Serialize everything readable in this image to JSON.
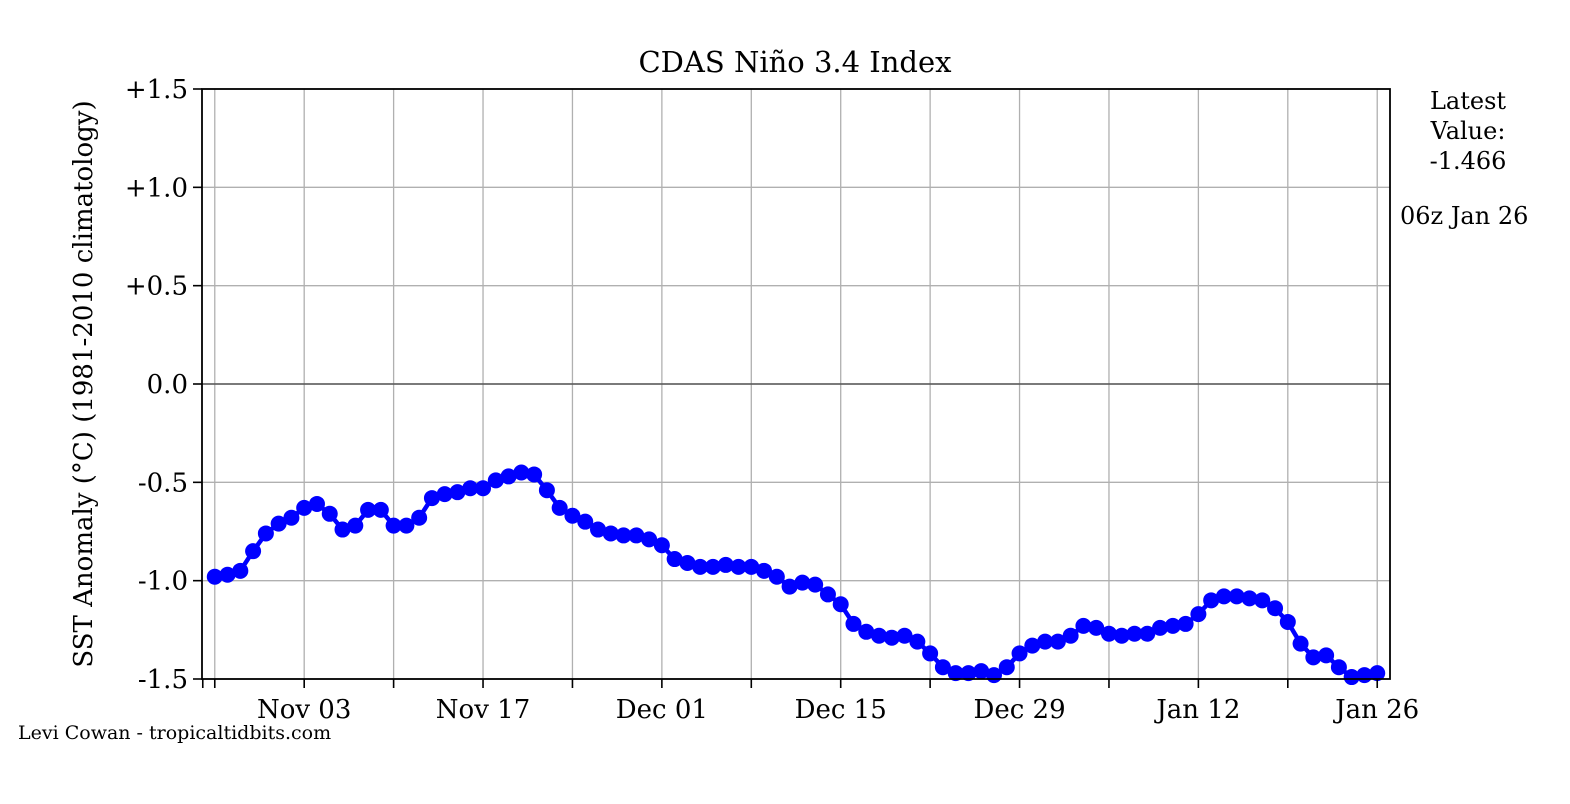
{
  "chart_data": {
    "type": "line",
    "title": "CDAS Niño 3.4 Index",
    "ylabel": "SST Anomaly (°C) (1981-2010 climatology)",
    "xlabel": "",
    "ylim": [
      -1.5,
      1.5
    ],
    "yticks": [
      1.5,
      1.0,
      0.5,
      0.0,
      -0.5,
      -1.0,
      -1.5
    ],
    "ytick_labels": [
      "+1.5",
      "+1.0",
      "+0.5",
      "0.0",
      "-0.5",
      "-1.0",
      "-1.5"
    ],
    "xlim": [
      "2017-10-26",
      "2018-01-27"
    ],
    "xticks": [
      "2017-11-03",
      "2017-11-17",
      "2017-12-01",
      "2017-12-15",
      "2017-12-29",
      "2018-01-12",
      "2018-01-26"
    ],
    "xtick_labels": [
      "Nov 03",
      "Nov 17",
      "Dec 01",
      "Dec 15",
      "Dec 29",
      "Jan 12",
      "Jan 26"
    ],
    "grid": true,
    "zero_line": true,
    "line_color": "#0000ff",
    "series": [
      {
        "x": [
          "2017-10-27",
          "2017-10-28",
          "2017-10-29",
          "2017-10-30",
          "2017-10-31",
          "2017-11-01",
          "2017-11-02",
          "2017-11-03",
          "2017-11-04",
          "2017-11-05",
          "2017-11-06",
          "2017-11-07",
          "2017-11-08",
          "2017-11-09",
          "2017-11-10",
          "2017-11-11",
          "2017-11-12",
          "2017-11-13",
          "2017-11-14",
          "2017-11-15",
          "2017-11-16",
          "2017-11-17",
          "2017-11-18",
          "2017-11-19",
          "2017-11-20",
          "2017-11-21",
          "2017-11-22",
          "2017-11-23",
          "2017-11-24",
          "2017-11-25",
          "2017-11-26",
          "2017-11-27",
          "2017-11-28",
          "2017-11-29",
          "2017-11-30",
          "2017-12-01",
          "2017-12-02",
          "2017-12-03",
          "2017-12-04",
          "2017-12-05",
          "2017-12-06",
          "2017-12-07",
          "2017-12-08",
          "2017-12-09",
          "2017-12-10",
          "2017-12-11",
          "2017-12-12",
          "2017-12-13",
          "2017-12-14",
          "2017-12-15",
          "2017-12-16",
          "2017-12-17",
          "2017-12-18",
          "2017-12-19",
          "2017-12-20",
          "2017-12-21",
          "2017-12-22",
          "2017-12-23",
          "2017-12-24",
          "2017-12-25",
          "2017-12-26",
          "2017-12-27",
          "2017-12-28",
          "2017-12-29",
          "2017-12-30",
          "2017-12-31",
          "2018-01-01",
          "2018-01-02",
          "2018-01-03",
          "2018-01-04",
          "2018-01-05",
          "2018-01-06",
          "2018-01-07",
          "2018-01-08",
          "2018-01-09",
          "2018-01-10",
          "2018-01-11",
          "2018-01-12",
          "2018-01-13",
          "2018-01-14",
          "2018-01-15",
          "2018-01-16",
          "2018-01-17",
          "2018-01-18",
          "2018-01-19",
          "2018-01-20",
          "2018-01-21",
          "2018-01-22",
          "2018-01-23",
          "2018-01-24",
          "2018-01-25",
          "2018-01-26"
        ],
        "y": [
          -0.98,
          -0.97,
          -0.95,
          -0.85,
          -0.76,
          -0.71,
          -0.68,
          -0.63,
          -0.61,
          -0.66,
          -0.74,
          -0.72,
          -0.64,
          -0.64,
          -0.72,
          -0.72,
          -0.68,
          -0.58,
          -0.56,
          -0.55,
          -0.53,
          -0.53,
          -0.49,
          -0.47,
          -0.45,
          -0.46,
          -0.54,
          -0.63,
          -0.67,
          -0.7,
          -0.74,
          -0.76,
          -0.77,
          -0.77,
          -0.79,
          -0.82,
          -0.89,
          -0.91,
          -0.93,
          -0.93,
          -0.92,
          -0.93,
          -0.93,
          -0.95,
          -0.98,
          -1.03,
          -1.01,
          -1.02,
          -1.07,
          -1.12,
          -1.22,
          -1.26,
          -1.28,
          -1.29,
          -1.28,
          -1.31,
          -1.37,
          -1.44,
          -1.47,
          -1.47,
          -1.46,
          -1.48,
          -1.44,
          -1.37,
          -1.33,
          -1.31,
          -1.31,
          -1.28,
          -1.23,
          -1.24,
          -1.27,
          -1.28,
          -1.27,
          -1.27,
          -1.24,
          -1.23,
          -1.22,
          -1.17,
          -1.1,
          -1.08,
          -1.08,
          -1.09,
          -1.1,
          -1.14,
          -1.21,
          -1.32,
          -1.39,
          -1.38,
          -1.44,
          -1.49,
          -1.48,
          -1.47
        ]
      }
    ]
  },
  "latest": {
    "heading_1": "Latest",
    "heading_2": "Value:",
    "value": "-1.466",
    "timestamp": "06z Jan 26"
  },
  "credit": "Levi Cowan - tropicaltidbits.com"
}
